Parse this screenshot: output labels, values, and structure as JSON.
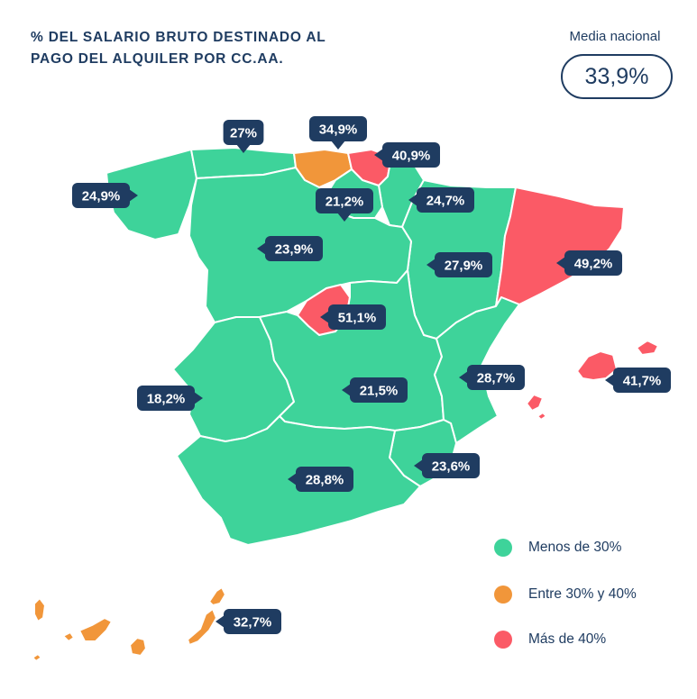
{
  "title_line1": "% DEL SALARIO BRUTO DESTINADO AL",
  "title_line2": "PAGO DEL ALQUILER POR CC.AA.",
  "national_average": {
    "label": "Media nacional",
    "value": "33,9%"
  },
  "colors": {
    "green": "#3ed39a",
    "orange": "#f1963a",
    "red": "#fb5a66",
    "label_bg": "#1f3c61",
    "label_text": "#ffffff",
    "border": "#ffffff"
  },
  "legend": [
    {
      "label": "Menos de 30%",
      "color": "#3ed39a"
    },
    {
      "label": "Entre 30% y 40%",
      "color": "#f1963a"
    },
    {
      "label": "Más de 40%",
      "color": "#fb5a66"
    }
  ],
  "regions": [
    {
      "id": "galicia",
      "value": "24,9%",
      "category": "green"
    },
    {
      "id": "asturias",
      "value": "27%",
      "category": "green"
    },
    {
      "id": "cantabria",
      "value": "34,9%",
      "category": "orange"
    },
    {
      "id": "pais-vasco",
      "value": "40,9%",
      "category": "red"
    },
    {
      "id": "la-rioja",
      "value": "21,2%",
      "category": "green"
    },
    {
      "id": "navarra",
      "value": "24,7%",
      "category": "green"
    },
    {
      "id": "castilla-y-leon",
      "value": "23,9%",
      "category": "green"
    },
    {
      "id": "aragon",
      "value": "27,9%",
      "category": "green"
    },
    {
      "id": "cataluna",
      "value": "49,2%",
      "category": "red"
    },
    {
      "id": "madrid",
      "value": "51,1%",
      "category": "red"
    },
    {
      "id": "extremadura",
      "value": "18,2%",
      "category": "green"
    },
    {
      "id": "castilla-la-mancha",
      "value": "21,5%",
      "category": "green"
    },
    {
      "id": "valencia",
      "value": "28,7%",
      "category": "green"
    },
    {
      "id": "baleares",
      "value": "41,7%",
      "category": "red"
    },
    {
      "id": "murcia",
      "value": "23,6%",
      "category": "green"
    },
    {
      "id": "andalucia",
      "value": "28,8%",
      "category": "green"
    },
    {
      "id": "canarias",
      "value": "32,7%",
      "category": "orange"
    }
  ]
}
